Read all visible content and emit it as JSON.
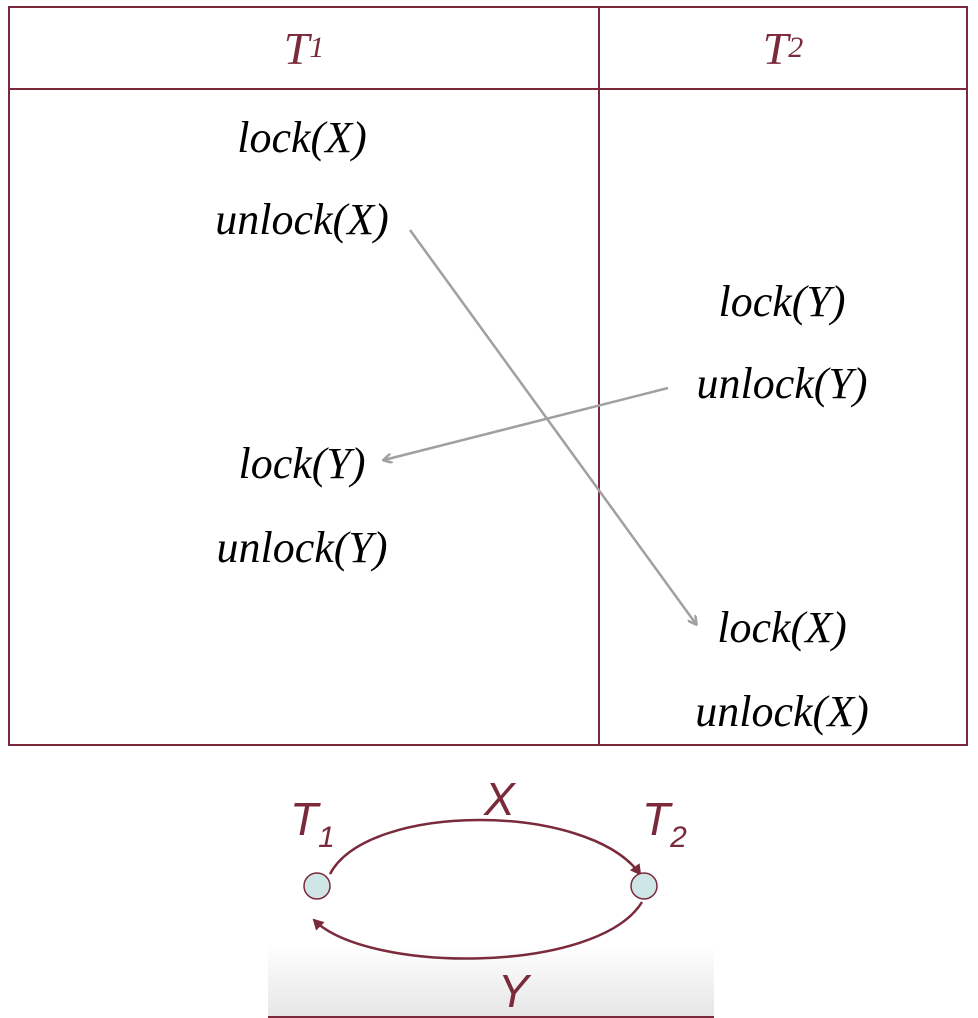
{
  "table": {
    "headers": {
      "t1": {
        "main": "T",
        "sub": "1"
      },
      "t2": {
        "main": "T",
        "sub": "2"
      }
    },
    "t1_ops": [
      "lock(X)",
      "unlock(X)",
      "lock(Y)",
      "unlock(Y)"
    ],
    "t2_ops": [
      "lock(Y)",
      "unlock(Y)",
      "lock(X)",
      "unlock(X)"
    ]
  },
  "precedence_graph": {
    "nodes": [
      {
        "main": "T",
        "sub": "1"
      },
      {
        "main": "T",
        "sub": "2"
      }
    ],
    "edges": [
      {
        "from": "T1",
        "to": "T2",
        "label": "X"
      },
      {
        "from": "T2",
        "to": "T1",
        "label": "Y"
      }
    ]
  },
  "colors": {
    "accent": "#7a2a3a",
    "arrow": "#a0a0a0",
    "node_fill": "#cfe6e6"
  }
}
